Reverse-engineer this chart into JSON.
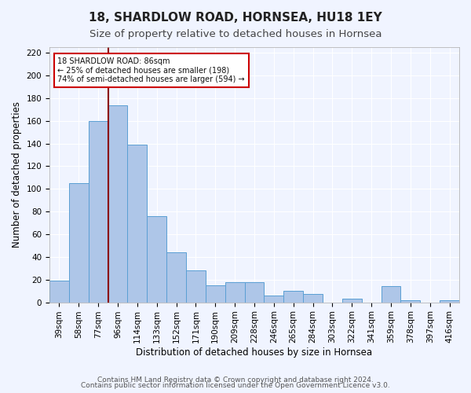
{
  "title": "18, SHARDLOW ROAD, HORNSEA, HU18 1EY",
  "subtitle": "Size of property relative to detached houses in Hornsea",
  "xlabel": "Distribution of detached houses by size in Hornsea",
  "ylabel": "Number of detached properties",
  "bar_labels": [
    "39sqm",
    "58sqm",
    "77sqm",
    "96sqm",
    "114sqm",
    "133sqm",
    "152sqm",
    "171sqm",
    "190sqm",
    "209sqm",
    "228sqm",
    "246sqm",
    "265sqm",
    "284sqm",
    "303sqm",
    "322sqm",
    "341sqm",
    "359sqm",
    "378sqm",
    "397sqm",
    "416sqm"
  ],
  "bar_values": [
    19,
    105,
    160,
    174,
    139,
    76,
    44,
    28,
    15,
    18,
    18,
    6,
    10,
    7,
    0,
    3,
    0,
    14,
    2,
    0,
    2
  ],
  "bar_color": "#aec6e8",
  "bar_edge_color": "#5a9fd4",
  "vline_x": 3,
  "vline_color": "#8b0000",
  "annotation_title": "18 SHARDLOW ROAD: 86sqm",
  "annotation_line1": "← 25% of detached houses are smaller (198)",
  "annotation_line2": "74% of semi-detached houses are larger (594) →",
  "annotation_box_color": "#ffffff",
  "annotation_box_edgecolor": "#cc0000",
  "ylim": [
    0,
    225
  ],
  "yticks": [
    0,
    20,
    40,
    60,
    80,
    100,
    120,
    140,
    160,
    180,
    200,
    220
  ],
  "footer1": "Contains HM Land Registry data © Crown copyright and database right 2024.",
  "footer2": "Contains public sector information licensed under the Open Government Licence v3.0.",
  "bg_color": "#f0f4ff",
  "grid_color": "#ffffff",
  "title_fontsize": 11,
  "subtitle_fontsize": 9.5,
  "axis_label_fontsize": 8.5,
  "tick_fontsize": 7.5,
  "footer_fontsize": 6.5
}
